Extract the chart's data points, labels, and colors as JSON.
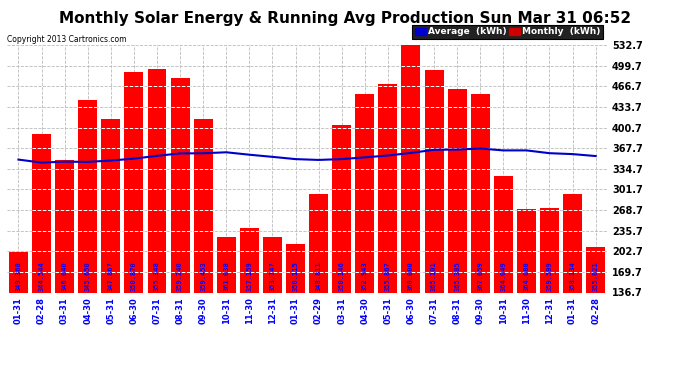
{
  "title": "Monthly Solar Energy & Running Avg Production Sun Mar 31 06:52",
  "copyright": "Copyright 2013 Cartronics.com",
  "categories": [
    "01-31",
    "02-28",
    "03-31",
    "04-30",
    "05-31",
    "06-30",
    "07-31",
    "08-31",
    "09-30",
    "10-31",
    "11-30",
    "12-31",
    "01-31",
    "02-29",
    "03-31",
    "04-30",
    "05-31",
    "06-30",
    "07-31",
    "08-31",
    "09-30",
    "10-31",
    "11-30",
    "12-31",
    "01-31",
    "02-28"
  ],
  "monthly_values": [
    202.0,
    390.0,
    348.0,
    445.0,
    415.0,
    490.0,
    495.0,
    480.0,
    415.0,
    225.0,
    240.0,
    225.0,
    215.0,
    295.0,
    404.0,
    455.0,
    470.0,
    532.0,
    492.0,
    463.0,
    455.0,
    323.0,
    270.0,
    272.0,
    295.0,
    210.0
  ],
  "running_avg": [
    349.368,
    344.544,
    346.04,
    345.65,
    347.867,
    350.87,
    355.348,
    359.24,
    359.453,
    361.038,
    357.159,
    353.747,
    350.115,
    348.811,
    350.146,
    352.943,
    355.867,
    360.0,
    365.101,
    365.385,
    367.059,
    364.049,
    364.08,
    359.599,
    358.134,
    355.021
  ],
  "bar_color": "#ff0000",
  "line_color": "#0000cc",
  "background_color": "#ffffff",
  "plot_bg_color": "#ffffff",
  "grid_color": "#bbbbbb",
  "ylabel_right": [
    "136.7",
    "169.7",
    "202.7",
    "235.7",
    "268.7",
    "301.7",
    "334.7",
    "367.7",
    "400.7",
    "433.7",
    "466.7",
    "499.7",
    "532.7"
  ],
  "ylim": [
    136.7,
    532.7
  ],
  "title_fontsize": 11,
  "bar_label_color": "#0000ff",
  "avg_label": "Average  (kWh)",
  "monthly_label": "Monthly  (kWh)",
  "legend_avg_bg": "#0000cc",
  "legend_monthly_bg": "#cc0000"
}
